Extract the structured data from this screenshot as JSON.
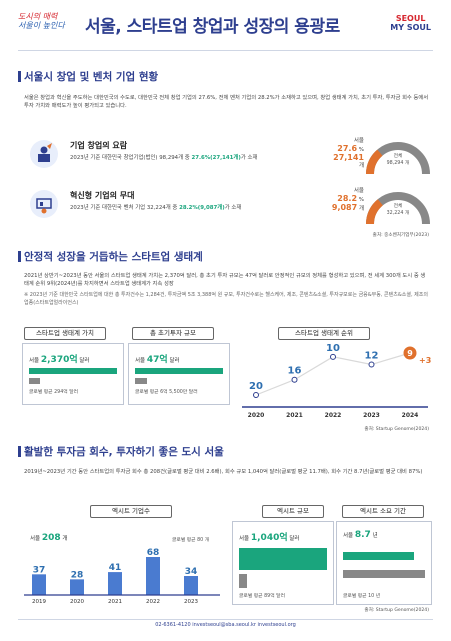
{
  "header": {
    "slogan_l1": "도시의 매력",
    "slogan_l2": "서울이 높인다",
    "title": "서울, 스타트업 창업과 성장의 용광로",
    "logo_l1": "SEOUL",
    "logo_l2": "MY SOUL"
  },
  "section1": {
    "title": "서울시 창업 및 벤처 기업 현황",
    "para": "서울은 창업과 혁신을 주도하는 대한민국의 수도로, 대한민국 전체 창업 기업의 27.6%, 전체 벤처 기업의 28.2%가 소재하고 있으며, 창업 생태계 가치, 초기 투자, 투자금 회수 등에서 투자 가치와 매력도가 높이 평가되고 있습니다.",
    "card1": {
      "title": "기업 창업의 요람",
      "desc_pre": "2023년 기준 대한민국 창업기업(법인) 98,294개 중 ",
      "desc_hi": "27.6%(27,141개)",
      "desc_post": "가 소재",
      "label": "서울",
      "pct": "27.6",
      "pct_unit": "%",
      "cnt": "27,141",
      "cnt_unit": "개",
      "whole_label": "전체",
      "whole_val": "98,294 개",
      "ratio": 0.276
    },
    "card2": {
      "title": "혁신형 기업의 무대",
      "desc_pre": "2023년 기준 대한민국 벤처 기업 32,224개 중 ",
      "desc_hi": "28.2%(9,087개)",
      "desc_post": "가 소재",
      "label": "서울",
      "pct": "28.2",
      "pct_unit": "%",
      "cnt": "9,087",
      "cnt_unit": "개",
      "whole_label": "전체",
      "whole_val": "32,224 개",
      "ratio": 0.282
    },
    "source": "출처: 중소벤처기업부(2023)"
  },
  "section2": {
    "title": "안정적 성장을 거듭하는 스타트업 생태계",
    "para": "2021년 상반기~2023년 동안 서울의 스타트업 생태계 가치는 2,370억 달러, 총 초기 투자 규모는 47억 달러로 안정적인 규모의 정체를 형성하고 있으며, 전 세계 300개 도시 중 생태계 순위 9위(2024년)를 차지하면서 스타트업 생태계가 지속 성장",
    "note": "※ 2023년 기준 대한민국 스타트업에 대한 총 투자건수는 1,284건, 투자금액 5조 3,388억 원 규모, 투자건수로는 헬스케어, 제조, 콘텐츠&소셜, 투자규모로는 금융&부동, 콘텐츠&소셜, 제조의 업종(스타트업얼라이언스)",
    "box1": {
      "label": "스타트업 생태계 가치",
      "city": "서울",
      "val": "2,370억",
      "unit": "달러",
      "avg": "글로벌 평균 294억 달러",
      "ratio": 0.124
    },
    "box2": {
      "label": "총 초기투자 규모",
      "city": "서울",
      "val": "47억",
      "unit": "달러",
      "avg": "글로벌 평균 6억 5,500만 달러",
      "ratio": 0.139
    },
    "box3": {
      "label": "스타트업 생태계 순위"
    },
    "rank_chart": {
      "years": [
        "2020",
        "2021",
        "2022",
        "2023",
        "2024"
      ],
      "ranks": [
        20,
        16,
        10,
        12,
        9
      ],
      "delta": "+3"
    },
    "source": "출처: Startup Genome(2024)"
  },
  "section3": {
    "title": "활발한 투자금 회수, 투자하기 좋은 도시 서울",
    "para": "2019년~2023년 기간 동안 스타트업의 투자금 회수 총 208건(글로벌 평균 대비 2.6배), 회수 규모 1,040억 달러(글로벌 평균 11.7배), 회수 기간 8.7년(글로벌 평균 대비 87%)",
    "box1": {
      "label": "엑시트 기업수",
      "city": "서울",
      "val": "208",
      "unit": "개",
      "avg": "글로벌 평균 80 개"
    },
    "exit_chart": {
      "years": [
        "2019",
        "2020",
        "2021",
        "2022",
        "2023"
      ],
      "values": [
        37,
        28,
        41,
        68,
        34
      ]
    },
    "box2": {
      "label": "엑시트 규모",
      "city": "서울",
      "val": "1,040억",
      "unit": "달러",
      "avg": "글로벌 평균 89억 달러",
      "ratio": 0.086
    },
    "box3": {
      "label": "엑시트 소요 기간",
      "city": "서울",
      "val": "8.7",
      "unit": "년",
      "avg": "글로벌 평균 10 년",
      "ratio": 0.87
    },
    "source": "출처: Startup Genome(2024)"
  },
  "footer": {
    "text": "02-6361-4120    investseoul@sba.seoul.kr    investseoul.org"
  },
  "colors": {
    "navy": "#2e3f8f",
    "green": "#1aa57d",
    "orange": "#e0712d",
    "gray": "#888888"
  }
}
